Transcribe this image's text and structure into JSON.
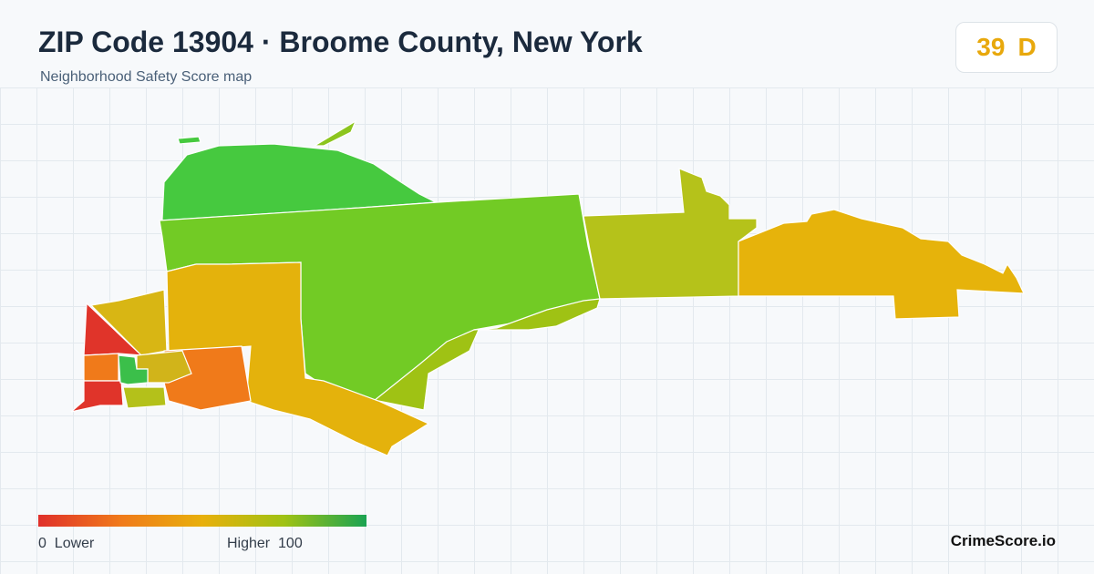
{
  "header": {
    "title": "ZIP Code 13904 · Broome County, New York",
    "subtitle": "Neighborhood Safety Score map"
  },
  "score": {
    "value": 39,
    "grade": "D"
  },
  "legend": {
    "min": 0,
    "min_label": "Lower",
    "max_label": "Higher",
    "max": 100
  },
  "brand": "CrimeScore.io"
}
